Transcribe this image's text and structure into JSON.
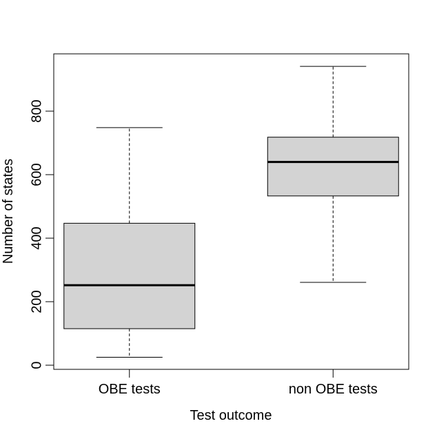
{
  "chart_data": {
    "type": "boxplot",
    "xlabel": "Test outcome",
    "ylabel": "Number of states",
    "categories": [
      "OBE tests",
      "non OBE tests"
    ],
    "boxes": [
      {
        "category": "OBE tests",
        "min": 25,
        "q1": 115,
        "median": 252,
        "q3": 447,
        "max": 748
      },
      {
        "category": "non OBE tests",
        "min": 261,
        "q1": 533,
        "median": 640,
        "q3": 718,
        "max": 941
      }
    ],
    "yticks": [
      0,
      200,
      400,
      600,
      800
    ],
    "ylim": [
      0,
      941
    ],
    "box_fill": "#d3d3d3",
    "stroke": "#000000",
    "grid": false,
    "legend": "none"
  }
}
